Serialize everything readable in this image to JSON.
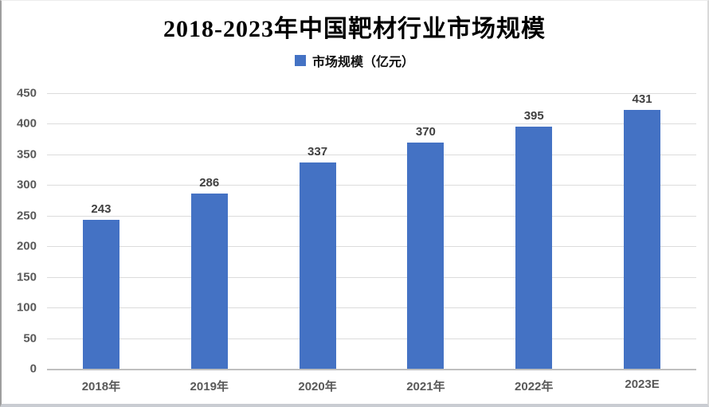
{
  "title": "2018-2023年中国靶材行业市场规模",
  "legend": {
    "label": "市场规模（亿元）",
    "swatch_color": "#4472C4"
  },
  "colors": {
    "bar": "#4472C4",
    "gridline": "#dcdcdc",
    "axis_line": "#bfbfbf",
    "tick_label": "#595959",
    "value_label": "#404040",
    "title_text": "#000000"
  },
  "chart_data": {
    "type": "bar",
    "title": "2018-2023年中国靶材行业市场规模",
    "categories": [
      "2018年",
      "2019年",
      "2020年",
      "2021年",
      "2022年",
      "2023E"
    ],
    "values": [
      243,
      286,
      337,
      370,
      395,
      431
    ],
    "series_name": "市场规模（亿元）",
    "xlabel": "",
    "ylabel": "",
    "ylim": [
      0,
      450
    ],
    "ytick_step": 50,
    "yticks": [
      0,
      50,
      100,
      150,
      200,
      250,
      300,
      350,
      400,
      450
    ],
    "grid": true,
    "legend_position": "top",
    "bar_color": "#4472C4"
  }
}
